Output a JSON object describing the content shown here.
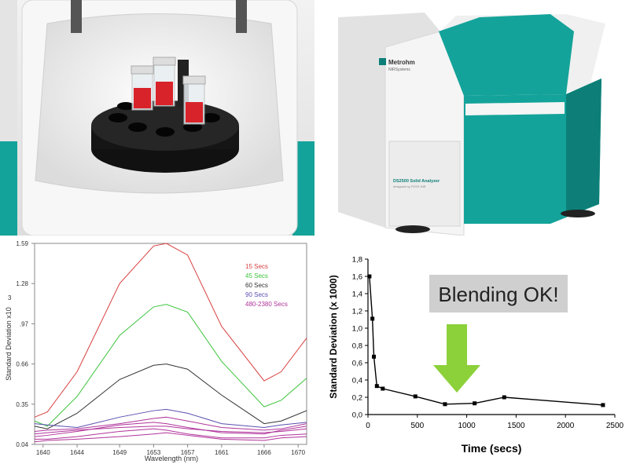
{
  "colors": {
    "teal": "#14a39a",
    "teal_dark": "#0d7f78",
    "housing": "#eeeeee",
    "sample_red": "#d9232a",
    "arrow_green": "#8cd13a"
  },
  "photos": {
    "left": {
      "icon": "sample-carousel-photo"
    },
    "right": {
      "icon": "nir-analyzer-photo",
      "brand": "Metrohm",
      "brand_sub": "NIRSystems",
      "model": "DS2500 Solid Analyzer",
      "model_sub": "designed by FOSS NIR"
    }
  },
  "chart_data": [
    {
      "type": "line",
      "xlabel": "Wavelength (nm)",
      "ylabel": "Standard Deviation x10",
      "ylabel_exponent": "3",
      "xlim": [
        1639,
        1671
      ],
      "ylim": [
        0.04,
        1.59
      ],
      "x_ticks": [
        "1640",
        "1644",
        "1649",
        "1653",
        "1657",
        "1661",
        "1666",
        "1670"
      ],
      "x_tick_values": [
        1640,
        1644,
        1649,
        1653,
        1657,
        1661,
        1666,
        1670
      ],
      "y_ticks": [
        "1.59",
        "1.28",
        ".97",
        "0.66",
        "0.35",
        "0.04"
      ],
      "y_tick_values": [
        1.59,
        1.28,
        0.97,
        0.66,
        0.35,
        0.04
      ],
      "legend_position": "top-right",
      "grid": false,
      "x": [
        1639,
        1640.5,
        1644,
        1649,
        1653,
        1654.5,
        1657,
        1661,
        1666,
        1668,
        1671
      ],
      "series": [
        {
          "name": "15 Secs",
          "color": "#d94040",
          "values": [
            0.25,
            0.29,
            0.6,
            1.28,
            1.57,
            1.59,
            1.5,
            0.95,
            0.53,
            0.6,
            0.86
          ],
          "labeled": true
        },
        {
          "name": "45 Secs",
          "color": "#3dc43d",
          "values": [
            0.22,
            0.18,
            0.41,
            0.88,
            1.1,
            1.12,
            1.06,
            0.68,
            0.33,
            0.38,
            0.55
          ],
          "labeled": true
        },
        {
          "name": "60 Secs",
          "color": "#333333",
          "values": [
            0.18,
            0.16,
            0.28,
            0.54,
            0.65,
            0.66,
            0.62,
            0.42,
            0.2,
            0.22,
            0.3
          ],
          "labeled": true
        },
        {
          "name": "90 Secs",
          "color": "#5a4fb0",
          "values": [
            0.2,
            0.19,
            0.17,
            0.25,
            0.3,
            0.31,
            0.28,
            0.2,
            0.17,
            0.19,
            0.21
          ],
          "labeled": true
        },
        {
          "name": "480-2380 Secs",
          "color": "#b0339a",
          "values": [
            0.1,
            0.11,
            0.14,
            0.19,
            0.21,
            0.2,
            0.17,
            0.13,
            0.12,
            0.15,
            0.18
          ],
          "labeled": true
        },
        {
          "color": "#b0339a",
          "values": [
            0.08,
            0.08,
            0.1,
            0.14,
            0.16,
            0.15,
            0.12,
            0.09,
            0.09,
            0.11,
            0.12
          ],
          "labeled": false
        },
        {
          "color": "#b0339a",
          "values": [
            0.06,
            0.07,
            0.08,
            0.1,
            0.12,
            0.13,
            0.11,
            0.08,
            0.07,
            0.09,
            0.1
          ],
          "labeled": false
        },
        {
          "color": "#b0339a",
          "values": [
            0.12,
            0.13,
            0.15,
            0.17,
            0.18,
            0.18,
            0.16,
            0.14,
            0.13,
            0.14,
            0.16
          ],
          "labeled": false
        },
        {
          "color": "#b0339a",
          "values": [
            0.14,
            0.15,
            0.16,
            0.2,
            0.24,
            0.25,
            0.22,
            0.17,
            0.15,
            0.16,
            0.2
          ],
          "labeled": false
        }
      ]
    },
    {
      "type": "line",
      "xlabel": "Time (secs)",
      "ylabel": "Standard Deviation (x 1000)",
      "xlim": [
        0,
        2500
      ],
      "ylim": [
        0,
        1.8
      ],
      "x_ticks": [
        "0",
        "500",
        "1000",
        "1500",
        "2000",
        "2500"
      ],
      "x_tick_values": [
        0,
        500,
        1000,
        1500,
        2000,
        2500
      ],
      "y_ticks": [
        "0,0",
        "0,2",
        "0,4",
        "0,6",
        "0,8",
        "1,0",
        "1,2",
        "1,4",
        "1,6",
        "1,8"
      ],
      "y_tick_values": [
        0,
        0.2,
        0.4,
        0.6,
        0.8,
        1.0,
        1.2,
        1.4,
        1.6,
        1.8
      ],
      "grid": false,
      "marker": "square",
      "x": [
        15,
        45,
        60,
        90,
        150,
        480,
        780,
        1080,
        1380,
        2380
      ],
      "values": [
        1.6,
        1.11,
        0.67,
        0.33,
        0.3,
        0.21,
        0.12,
        0.13,
        0.2,
        0.11
      ],
      "annotation": "Blending OK!",
      "arrow_at_x": 900
    }
  ]
}
